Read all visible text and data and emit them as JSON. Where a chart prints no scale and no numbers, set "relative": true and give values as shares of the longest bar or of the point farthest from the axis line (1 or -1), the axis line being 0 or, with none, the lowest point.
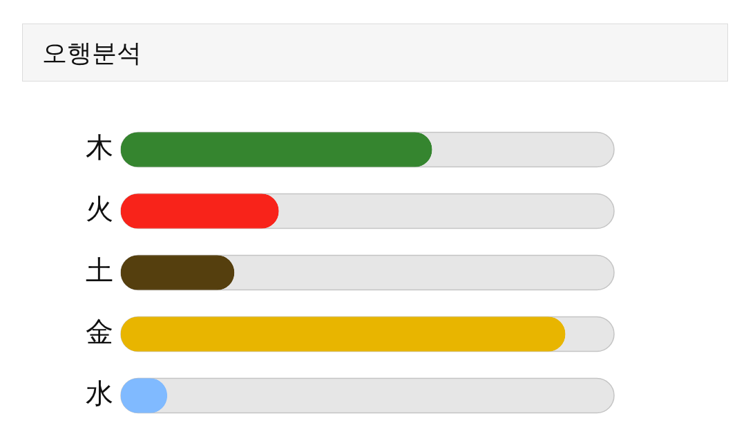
{
  "chart_data": {
    "type": "bar",
    "title": "오행분석",
    "orientation": "horizontal",
    "relative": true,
    "categories": [
      "木",
      "火",
      "土",
      "金",
      "水"
    ],
    "values": [
      0.7,
      0.355,
      0.255,
      1,
      0.104
    ],
    "colors": [
      "#35852f",
      "#f8231a",
      "#553f0e",
      "#e8b500",
      "#80baff"
    ]
  }
}
